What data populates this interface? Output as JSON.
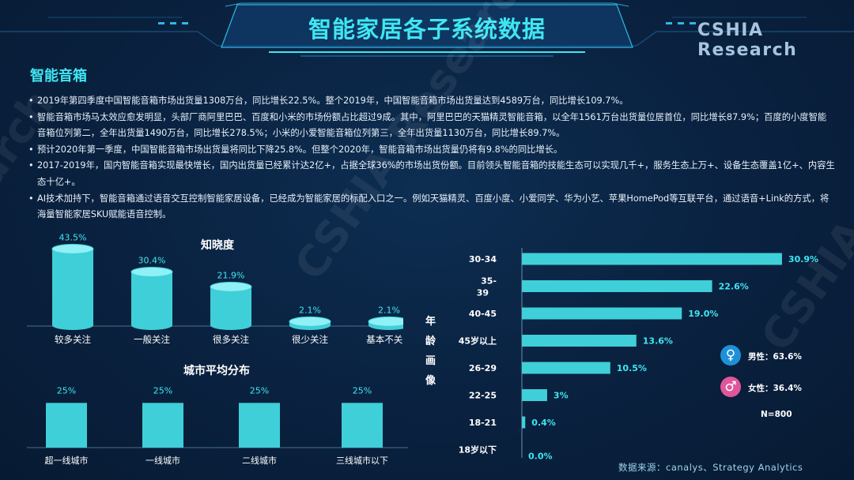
{
  "header": {
    "title": "智能家居各子系统数据",
    "brand": "CSHIA  Research"
  },
  "watermark": {
    "text": "CSHIA Research"
  },
  "section": {
    "title": "智能音箱"
  },
  "bullets": [
    "2019年第四季度中国智能音箱市场出货量1308万台，同比增长22.5%。整个2019年，中国智能音箱市场出货量达到4589万台，同比增长109.7%。",
    "智能音箱市场马太效应愈发明显，头部厂商阿里巴巴、百度和小米的市场份额占比超过9成。其中，阿里巴巴的天猫精灵智能音箱，以全年1561万台出货量位居首位，同比增长87.9%；百度的小度智能音箱位列第二，全年出货量1490万台，同比增长278.5%；小米的小爱智能音箱位列第三，全年出货量1130万台，同比增长89.7%。",
    "预计2020年第一季度，中国智能音箱市场出货量将同比下降25.8%。但整个2020年，智能音箱市场出货量仍将有9.8%的同比增长。",
    "2017-2019年，国内智能音箱实现最快增长，国内出货量已经累计达2亿+，占据全球36%的市场出货份额。目前领头智能音箱的技能生态可以实现几千+，服务生态上万+、设备生态覆盖1亿+、内容生态十亿+。",
    "AI技术加持下，智能音箱通过语音交互控制智能家居设备，已经成为智能家居的标配入口之一。例如天猫精灵、百度小度、小爱同学、华为小艺、苹果HomePod等互联平台，通过语音+Link的方式，将海量智能家居SKU赋能语音控制。"
  ],
  "colors": {
    "accent": "#3fe6f2",
    "bar": "#3fcfd8",
    "male": "#1e90d8",
    "female": "#e0569a"
  },
  "chart_data": [
    {
      "type": "bar",
      "title": "知晓度",
      "categories": [
        "较多关注",
        "一般关注",
        "很多关注",
        "很少关注",
        "基本不关注"
      ],
      "values": [
        43.5,
        30.4,
        21.9,
        2.1,
        2.1
      ],
      "value_labels": [
        "43.5%",
        "30.4%",
        "21.9%",
        "2.1%",
        "2.1%"
      ],
      "ylim": [
        0,
        45
      ]
    },
    {
      "type": "bar",
      "title": "城市平均分布",
      "categories": [
        "超一线城市",
        "一线城市",
        "二线城市",
        "三线城市以下"
      ],
      "values": [
        25,
        25,
        25,
        25
      ],
      "value_labels": [
        "25%",
        "25%",
        "25%",
        "25%"
      ],
      "ylim": [
        0,
        30
      ]
    },
    {
      "type": "bar",
      "orientation": "horizontal",
      "title": "年龄画像",
      "categories": [
        "30-34",
        "35-39",
        "40-45",
        "45岁以上",
        "26-29",
        "22-25",
        "18-21",
        "18岁以下"
      ],
      "values": [
        30.9,
        22.6,
        19.0,
        13.6,
        10.5,
        3,
        0.4,
        0.0
      ],
      "value_labels": [
        "30.9%",
        "22.6%",
        "19.0%",
        "13.6%",
        "10.5%",
        "3%",
        "0.4%",
        "0.0%"
      ],
      "xlim": [
        0,
        31
      ]
    }
  ],
  "gender": {
    "male_icon": "female-symbol-icon",
    "female_icon": "male-symbol-icon",
    "male_label": "男性：63.6%",
    "female_label": "女性：36.4%",
    "n": "N=800"
  },
  "source": "数据来源：canalys、Strategy Analytics"
}
